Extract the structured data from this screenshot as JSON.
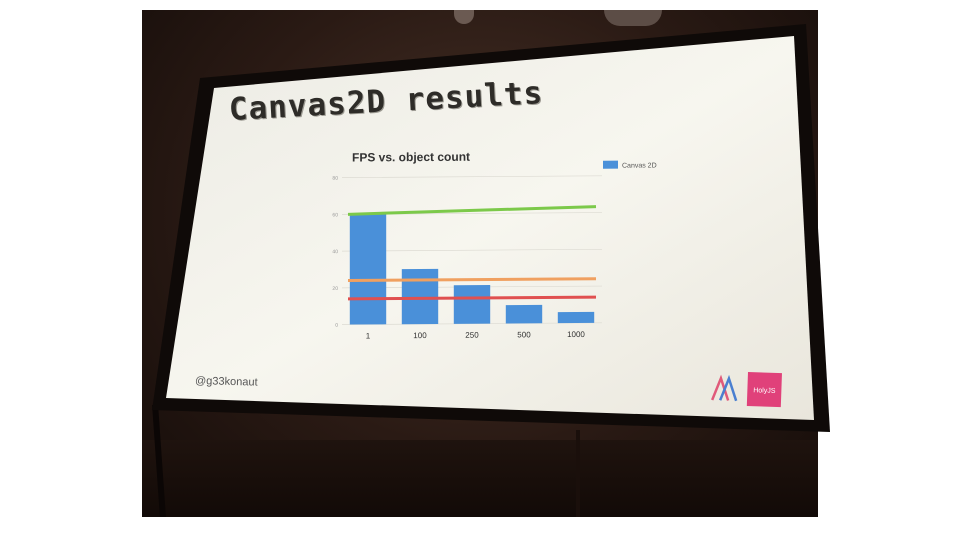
{
  "slide": {
    "title": "Canvas2D results",
    "handle": "@g33konaut",
    "logo_badge": "HolyJS"
  },
  "colors": {
    "bar": "#4a90d9",
    "line_green": "#7cc94a",
    "line_orange": "#f0a060",
    "line_red": "#e05050",
    "badge": "#e0417a"
  },
  "chart_data": {
    "type": "bar",
    "title": "FPS vs. object count",
    "categories": [
      "1",
      "100",
      "250",
      "500",
      "1000"
    ],
    "series": [
      {
        "name": "Canvas 2D",
        "values": [
          60,
          30,
          21,
          10,
          6
        ]
      }
    ],
    "y_ticks": [
      "0",
      "20",
      "40",
      "60",
      "80"
    ],
    "ylim": [
      0,
      80
    ],
    "legend_position": "top-right",
    "reference_lines": [
      60,
      24,
      14
    ]
  }
}
